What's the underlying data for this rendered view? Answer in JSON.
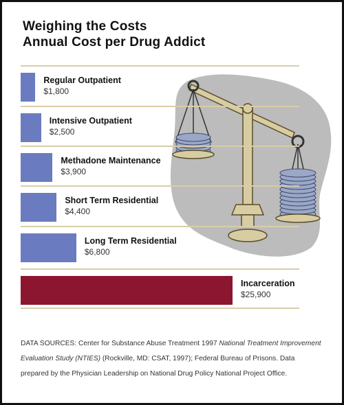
{
  "chart_data": {
    "type": "bar",
    "orientation": "horizontal",
    "title": "Weighing the Costs",
    "subtitle": "Annual Cost per Drug Addict",
    "categories": [
      "Regular Outpatient",
      "Intensive Outpatient",
      "Methadone Maintenance",
      "Short Term Residential",
      "Long Term Residential",
      "Incarceration"
    ],
    "values": [
      1800,
      2500,
      3900,
      4400,
      6800,
      25900
    ],
    "value_labels": [
      "$1,800",
      "$2,500",
      "$3,900",
      "$4,400",
      "$6,800",
      "$25,900"
    ],
    "colors": [
      "#6b7bbf",
      "#6b7bbf",
      "#6b7bbf",
      "#6b7bbf",
      "#6b7bbf",
      "#8c1630"
    ],
    "xlim": [
      0,
      25900
    ],
    "grid": false,
    "legend": "none"
  },
  "sources": {
    "prefix": "DATA SOURCES: Center for Substance Abuse Treatment 1997 ",
    "study_title": "National Treatment Improvement Evaluation Study (NTIES)",
    "suffix": " (Rockville, MD: CSAT, 1997); Federal Bureau of Prisons. Data prepared by the Physician Leadership on National Drug Policy National Project Office."
  },
  "colors": {
    "treatment_bar": "#6b7bbf",
    "incarceration_bar": "#8c1630",
    "rule": "#d8cda7",
    "illustration_shadow": "#b9b9b9",
    "scale_brass": "#d8cca2",
    "coins": "#9aa7c7"
  },
  "illustration": {
    "icon": "balance-scale-with-coin-stacks-icon"
  }
}
